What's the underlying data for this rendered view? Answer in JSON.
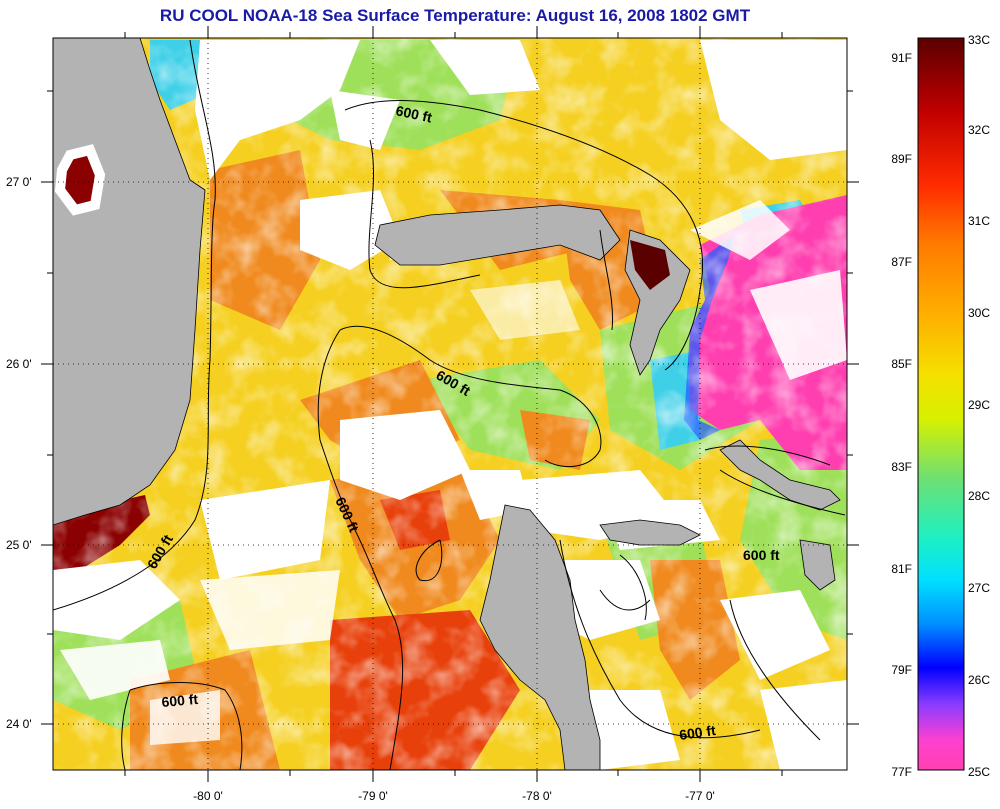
{
  "title": "RU COOL  NOAA-18  Sea Surface Temperature:  August 16, 2008 1802 GMT",
  "map": {
    "lat_ticks": [
      "27 0'",
      "26 0'",
      "25 0'",
      "24 0'"
    ],
    "lon_ticks": [
      "-80 0'",
      "-79 0'",
      "-78 0'",
      "-77 0'"
    ],
    "contour_labels": [
      "600 ft",
      "600 ft",
      "600 ft",
      "600 ft",
      "600 ft",
      "600 ft",
      "600 ft"
    ],
    "colors": {
      "land": "#b3b3b3",
      "cloud": "#ffffff",
      "warm": "#f08a1e",
      "mid": "#f5d020",
      "cool": "#8ee060",
      "cold": "#3fd0e8",
      "coldest": "#ff3fb0",
      "hot": "#8b0000"
    }
  },
  "colorbar": {
    "fahrenheit": [
      "91F",
      "89F",
      "87F",
      "85F",
      "83F",
      "81F",
      "79F",
      "77F"
    ],
    "celsius": [
      "33C",
      "32C",
      "31C",
      "30C",
      "29C",
      "28C",
      "27C",
      "26C",
      "25C"
    ]
  }
}
